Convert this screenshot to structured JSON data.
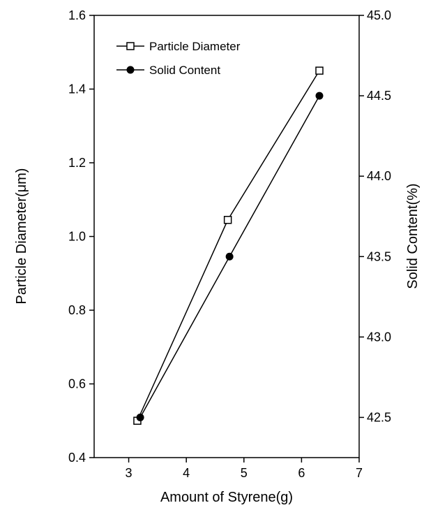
{
  "chart_data": {
    "type": "line",
    "xlabel": "Amount of Styrene(g)",
    "ylabel": "Particle Diameter(μm)",
    "y2label": "Solid Content(%)",
    "xlim": [
      2.4,
      7.0
    ],
    "ylim": [
      0.4,
      1.6
    ],
    "y2lim": [
      42.25,
      45.0
    ],
    "x_ticks": [
      "3",
      "4",
      "5",
      "6",
      "7"
    ],
    "y_ticks": [
      "0.4",
      "0.6",
      "0.8",
      "1.0",
      "1.2",
      "1.4",
      "1.6"
    ],
    "y2_ticks": [
      "42.5",
      "43.0",
      "43.5",
      "44.0",
      "44.5",
      "45.0"
    ],
    "grid": false,
    "legend_position": "top-left",
    "series": [
      {
        "name": "Particle Diameter",
        "axis": "left",
        "marker": "open-square",
        "x": [
          3.15,
          4.72,
          6.31
        ],
        "y": [
          0.5,
          1.045,
          1.45
        ]
      },
      {
        "name": "Solid Content",
        "axis": "right",
        "marker": "filled-circle",
        "x": [
          3.2,
          4.75,
          6.31
        ],
        "y": [
          42.5,
          43.5,
          44.5
        ]
      }
    ]
  }
}
